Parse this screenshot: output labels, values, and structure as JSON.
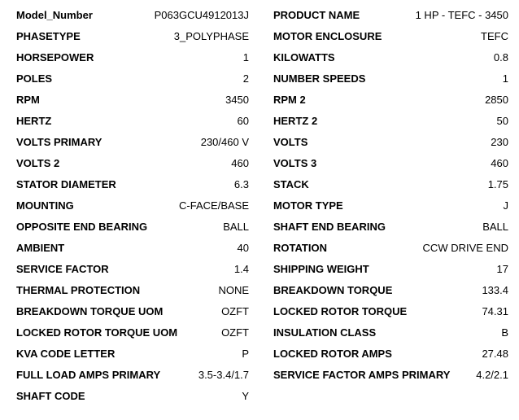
{
  "page": {
    "background_color": "#ffffff",
    "text_color": "#000000"
  },
  "spec_table": {
    "left_column": [
      {
        "label": "Model_Number",
        "value": "P063GCU4912013J"
      },
      {
        "label": "PHASETYPE",
        "value": "3_POLYPHASE"
      },
      {
        "label": "HORSEPOWER",
        "value": "1"
      },
      {
        "label": "POLES",
        "value": "2"
      },
      {
        "label": "RPM",
        "value": "3450"
      },
      {
        "label": "HERTZ",
        "value": "60"
      },
      {
        "label": "VOLTS PRIMARY",
        "value": "230/460 V"
      },
      {
        "label": "VOLTS 2",
        "value": "460"
      },
      {
        "label": "STATOR DIAMETER",
        "value": "6.3"
      },
      {
        "label": "MOUNTING",
        "value": "C-FACE/BASE"
      },
      {
        "label": "OPPOSITE END BEARING",
        "value": "BALL"
      },
      {
        "label": "AMBIENT",
        "value": "40"
      },
      {
        "label": "SERVICE FACTOR",
        "value": "1.4"
      },
      {
        "label": "THERMAL PROTECTION",
        "value": "NONE"
      },
      {
        "label": "BREAKDOWN TORQUE UOM",
        "value": "OZFT"
      },
      {
        "label": "LOCKED ROTOR TORQUE UOM",
        "value": "OZFT"
      },
      {
        "label": "KVA CODE LETTER",
        "value": "P"
      },
      {
        "label": "FULL LOAD AMPS PRIMARY",
        "value": "3.5-3.4/1.7"
      },
      {
        "label": "SHAFT CODE",
        "value": "Y"
      }
    ],
    "right_column": [
      {
        "label": "PRODUCT NAME",
        "value": "1 HP - TEFC - 3450"
      },
      {
        "label": "MOTOR ENCLOSURE",
        "value": "TEFC"
      },
      {
        "label": "KILOWATTS",
        "value": "0.8"
      },
      {
        "label": "NUMBER SPEEDS",
        "value": "1"
      },
      {
        "label": "RPM 2",
        "value": "2850"
      },
      {
        "label": "HERTZ 2",
        "value": "50"
      },
      {
        "label": "VOLTS",
        "value": "230"
      },
      {
        "label": "VOLTS 3",
        "value": "460"
      },
      {
        "label": "STACK",
        "value": "1.75"
      },
      {
        "label": "MOTOR TYPE",
        "value": "J"
      },
      {
        "label": "SHAFT END BEARING",
        "value": "BALL"
      },
      {
        "label": "ROTATION",
        "value": "CCW DRIVE END"
      },
      {
        "label": "SHIPPING WEIGHT",
        "value": "17"
      },
      {
        "label": "BREAKDOWN TORQUE",
        "value": "133.4"
      },
      {
        "label": "LOCKED ROTOR TORQUE",
        "value": "74.31"
      },
      {
        "label": "INSULATION CLASS",
        "value": "B"
      },
      {
        "label": "LOCKED ROTOR AMPS",
        "value": "27.48"
      },
      {
        "label": "SERVICE FACTOR AMPS PRIMARY",
        "value": "4.2/2.1"
      }
    ]
  }
}
